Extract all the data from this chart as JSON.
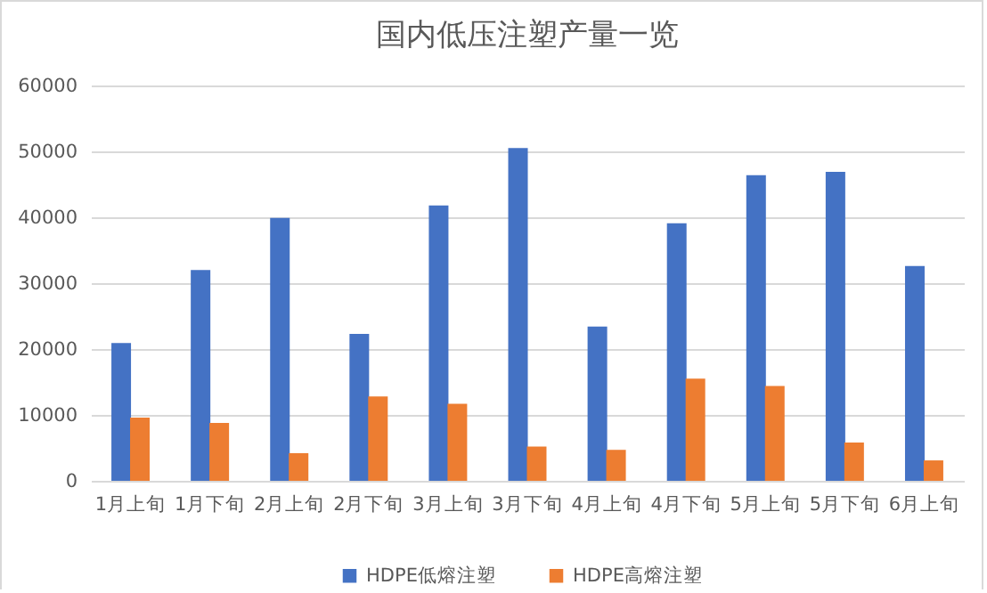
{
  "chart_data": {
    "type": "bar",
    "title": "国内低压注塑产量一览",
    "categories": [
      "1月上旬",
      "1月下旬",
      "2月上旬",
      "2月下旬",
      "3月上旬",
      "3月下旬",
      "4月上旬",
      "4月下旬",
      "5月上旬",
      "5月下旬",
      "6月上旬"
    ],
    "series": [
      {
        "name": "HDPE低熔注塑",
        "color": "#4472c4",
        "values": [
          20900,
          32000,
          39900,
          22300,
          41800,
          50500,
          23400,
          39100,
          46400,
          46900,
          32600
        ]
      },
      {
        "name": "HDPE高熔注塑",
        "color": "#ed7d31",
        "values": [
          9600,
          8800,
          4200,
          12800,
          11700,
          5200,
          4700,
          15500,
          14400,
          5800,
          3100
        ]
      }
    ],
    "ylim": [
      0,
      60000
    ],
    "yticks": [
      0,
      10000,
      20000,
      30000,
      40000,
      50000,
      60000
    ],
    "grid": "y",
    "legend": "bottom"
  }
}
